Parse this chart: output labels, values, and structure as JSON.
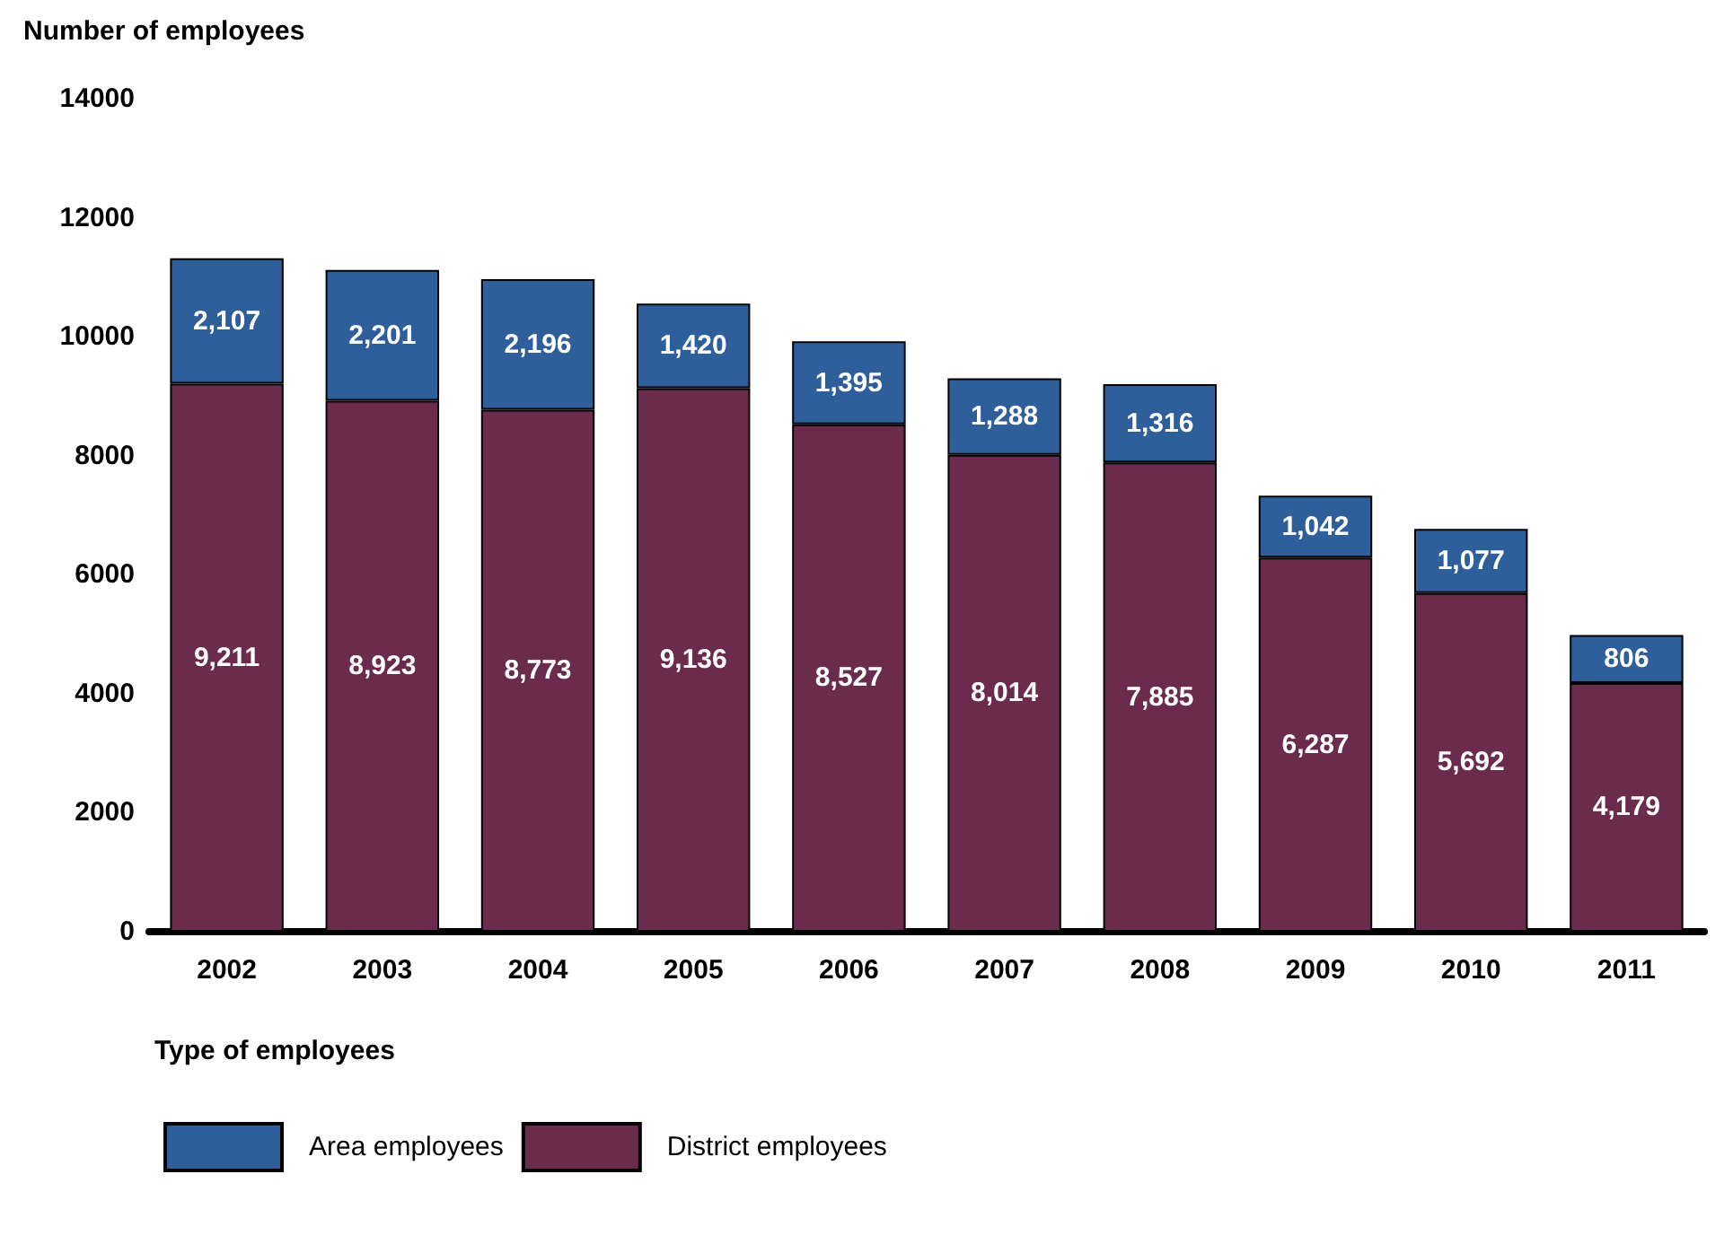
{
  "chart_data": {
    "type": "bar",
    "ylabel": "Number of employees",
    "legend_title": "Type of employees",
    "categories": [
      "2002",
      "2003",
      "2004",
      "2005",
      "2006",
      "2007",
      "2008",
      "2009",
      "2010",
      "2011"
    ],
    "stacked": true,
    "legend": "bottom left",
    "grid": false,
    "ylim": [
      0,
      14000
    ],
    "yticks": [
      0,
      2000,
      4000,
      6000,
      8000,
      10000,
      12000,
      14000
    ],
    "series": [
      {
        "name": "District employees",
        "color": "#6b2b4c",
        "values": [
          9211,
          8923,
          8773,
          9136,
          8527,
          8014,
          7885,
          6287,
          5692,
          4179
        ],
        "value_labels": [
          "9,211",
          "8,923",
          "8,773",
          "9,136",
          "8,527",
          "8,014",
          "7,885",
          "6,287",
          "5,692",
          "4,179"
        ]
      },
      {
        "name": "Area employees",
        "color": "#2f5f9b",
        "values": [
          2107,
          2201,
          2196,
          1420,
          1395,
          1288,
          1316,
          1042,
          1077,
          806
        ],
        "value_labels": [
          "2,107",
          "2,201",
          "2,196",
          "1,420",
          "1,395",
          "1,288",
          "1,316",
          "1,042",
          "1,077",
          "806"
        ]
      }
    ]
  }
}
